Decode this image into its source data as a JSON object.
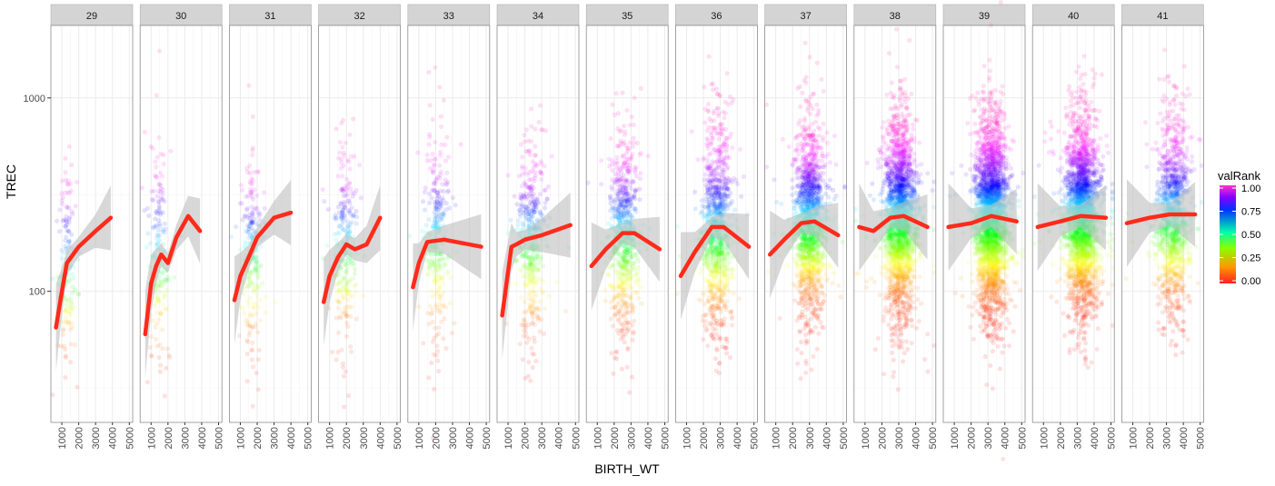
{
  "chart_data": {
    "type": "scatter",
    "facet_variable_values": [
      "29",
      "30",
      "31",
      "32",
      "33",
      "34",
      "35",
      "36",
      "37",
      "38",
      "39",
      "40",
      "41"
    ],
    "xlabel": "BIRTH_WT",
    "ylabel": "TREC",
    "x_scale": "linear",
    "y_scale": "log10",
    "xlim": [
      350,
      5200
    ],
    "ylim": [
      21,
      2370
    ],
    "x_ticks": [
      "1000",
      "2000",
      "3000",
      "4000",
      "5000"
    ],
    "y_ticks": [
      "100",
      "1000"
    ],
    "grid": true,
    "legend": {
      "title": "valRank",
      "position": "right",
      "type": "colorbar",
      "labels": [
        "1.00",
        "0.75",
        "0.50",
        "0.25",
        "0.00"
      ],
      "colors": [
        "#FF2020",
        "#FF9900",
        "#88FF00",
        "#00FFAA",
        "#0066FF",
        "#8800FF",
        "#FF33CC"
      ]
    },
    "smooth_color": "#FF2A1A",
    "band_color": "#BEBEBE",
    "point_opacity": 0.12,
    "panels": [
      {
        "label": "29",
        "cloud": {
          "n": 150,
          "bw_mean": 1300,
          "bw_sd": 260,
          "trec_median": 140,
          "log_sd": 0.28
        },
        "smooth": [
          [
            650,
            65
          ],
          [
            1000,
            100
          ],
          [
            1300,
            140
          ],
          [
            2000,
            170
          ],
          [
            3000,
            205
          ],
          [
            3900,
            240
          ]
        ]
      },
      {
        "label": "30",
        "cloud": {
          "n": 180,
          "bw_mean": 1400,
          "bw_sd": 300,
          "trec_median": 150,
          "log_sd": 0.28
        },
        "smooth": [
          [
            650,
            60
          ],
          [
            1000,
            110
          ],
          [
            1300,
            135
          ],
          [
            1600,
            155
          ],
          [
            2000,
            140
          ],
          [
            2500,
            190
          ],
          [
            3200,
            245
          ],
          [
            3900,
            205
          ]
        ]
      },
      {
        "label": "31",
        "cloud": {
          "n": 220,
          "bw_mean": 1650,
          "bw_sd": 320,
          "trec_median": 160,
          "log_sd": 0.28
        },
        "smooth": [
          [
            650,
            90
          ],
          [
            1000,
            120
          ],
          [
            1500,
            150
          ],
          [
            2000,
            190
          ],
          [
            3000,
            240
          ],
          [
            4000,
            255
          ]
        ]
      },
      {
        "label": "32",
        "cloud": {
          "n": 260,
          "bw_mean": 1900,
          "bw_sd": 330,
          "trec_median": 170,
          "log_sd": 0.28
        },
        "smooth": [
          [
            650,
            88
          ],
          [
            1000,
            120
          ],
          [
            1500,
            150
          ],
          [
            2000,
            175
          ],
          [
            2500,
            165
          ],
          [
            3200,
            175
          ],
          [
            4000,
            240
          ]
        ]
      },
      {
        "label": "33",
        "cloud": {
          "n": 300,
          "bw_mean": 2100,
          "bw_sd": 350,
          "trec_median": 180,
          "log_sd": 0.27
        },
        "smooth": [
          [
            650,
            105
          ],
          [
            1000,
            140
          ],
          [
            1500,
            180
          ],
          [
            2500,
            185
          ],
          [
            4700,
            170
          ]
        ]
      },
      {
        "label": "34",
        "cloud": {
          "n": 450,
          "bw_mean": 2400,
          "bw_sd": 380,
          "trec_median": 185,
          "log_sd": 0.27
        },
        "smooth": [
          [
            650,
            75
          ],
          [
            1200,
            170
          ],
          [
            1500,
            175
          ],
          [
            2000,
            185
          ],
          [
            3000,
            195
          ],
          [
            4700,
            220
          ]
        ]
      },
      {
        "label": "35",
        "cloud": {
          "n": 700,
          "bw_mean": 2600,
          "bw_sd": 400,
          "trec_median": 195,
          "log_sd": 0.27
        },
        "smooth": [
          [
            650,
            135
          ],
          [
            1500,
            165
          ],
          [
            2500,
            200
          ],
          [
            3200,
            200
          ],
          [
            4700,
            165
          ]
        ]
      },
      {
        "label": "36",
        "cloud": {
          "n": 1000,
          "bw_mean": 2800,
          "bw_sd": 420,
          "trec_median": 210,
          "log_sd": 0.27
        },
        "smooth": [
          [
            650,
            120
          ],
          [
            1500,
            160
          ],
          [
            2500,
            215
          ],
          [
            3200,
            215
          ],
          [
            4700,
            170
          ]
        ]
      },
      {
        "label": "37",
        "cloud": {
          "n": 1500,
          "bw_mean": 3000,
          "bw_sd": 430,
          "trec_median": 225,
          "log_sd": 0.26
        },
        "smooth": [
          [
            650,
            155
          ],
          [
            1500,
            185
          ],
          [
            2500,
            225
          ],
          [
            3300,
            230
          ],
          [
            4700,
            195
          ]
        ]
      },
      {
        "label": "38",
        "cloud": {
          "n": 2200,
          "bw_mean": 3100,
          "bw_sd": 440,
          "trec_median": 235,
          "log_sd": 0.26
        },
        "smooth": [
          [
            650,
            215
          ],
          [
            1500,
            205
          ],
          [
            2500,
            240
          ],
          [
            3300,
            245
          ],
          [
            4700,
            215
          ]
        ]
      },
      {
        "label": "39",
        "cloud": {
          "n": 2800,
          "bw_mean": 3200,
          "bw_sd": 450,
          "trec_median": 240,
          "log_sd": 0.26
        },
        "smooth": [
          [
            650,
            215
          ],
          [
            2000,
            225
          ],
          [
            3200,
            245
          ],
          [
            4700,
            230
          ]
        ]
      },
      {
        "label": "40",
        "cloud": {
          "n": 2500,
          "bw_mean": 3300,
          "bw_sd": 460,
          "trec_median": 245,
          "log_sd": 0.26
        },
        "smooth": [
          [
            650,
            215
          ],
          [
            2000,
            230
          ],
          [
            3200,
            245
          ],
          [
            4700,
            240
          ]
        ]
      },
      {
        "label": "41",
        "cloud": {
          "n": 1200,
          "bw_mean": 3400,
          "bw_sd": 460,
          "trec_median": 245,
          "log_sd": 0.26
        },
        "smooth": [
          [
            650,
            225
          ],
          [
            2000,
            240
          ],
          [
            3200,
            250
          ],
          [
            4700,
            250
          ]
        ]
      }
    ]
  }
}
